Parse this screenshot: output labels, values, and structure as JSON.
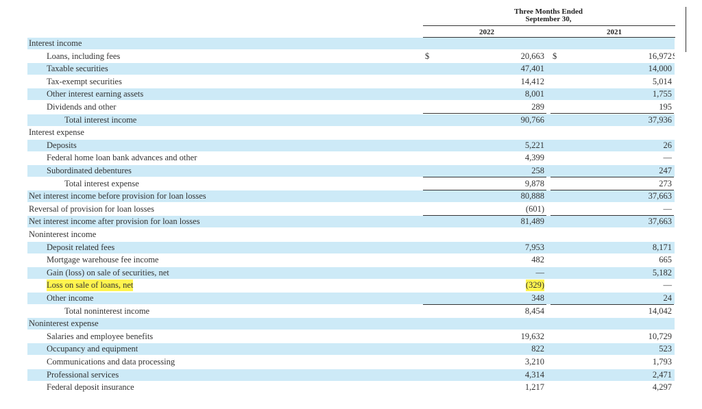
{
  "header": {
    "period": "Three Months Ended",
    "date": "September 30,",
    "col_2022": "2022",
    "col_2021": "2021"
  },
  "currency_symbol": "$",
  "rows": [
    {
      "label": "Interest income",
      "indent": 0,
      "shade": true
    },
    {
      "label": "Loans, including fees",
      "indent": 1,
      "shade": false,
      "v2022": "20,663",
      "v2021": "16,972",
      "cur_left": true,
      "cur_mid": true,
      "cur_right": true
    },
    {
      "label": "Taxable securities",
      "indent": 1,
      "shade": true,
      "v2022": "47,401",
      "v2021": "14,000"
    },
    {
      "label": "Tax-exempt securities",
      "indent": 1,
      "shade": false,
      "v2022": "14,412",
      "v2021": "5,014"
    },
    {
      "label": "Other interest earning assets",
      "indent": 1,
      "shade": true,
      "v2022": "8,001",
      "v2021": "1,755"
    },
    {
      "label": "Dividends and other",
      "indent": 1,
      "shade": false,
      "v2022": "289",
      "v2021": "195",
      "underline": true
    },
    {
      "label": "Total interest income",
      "indent": 2,
      "shade": true,
      "v2022": "90,766",
      "v2021": "37,936"
    },
    {
      "label": "Interest expense",
      "indent": 0,
      "shade": false
    },
    {
      "label": "Deposits",
      "indent": 1,
      "shade": true,
      "v2022": "5,221",
      "v2021": "26"
    },
    {
      "label": "Federal home loan bank advances and other",
      "indent": 1,
      "shade": false,
      "v2022": "4,399",
      "v2021": "—"
    },
    {
      "label": "Subordinated debentures",
      "indent": 1,
      "shade": true,
      "v2022": "258",
      "v2021": "247",
      "underline": true
    },
    {
      "label": "Total interest expense",
      "indent": 2,
      "shade": false,
      "v2022": "9,878",
      "v2021": "273",
      "underline": true
    },
    {
      "label": "Net interest income before provision for loan losses",
      "indent": 0,
      "shade": true,
      "v2022": "80,888",
      "v2021": "37,663"
    },
    {
      "label": "Reversal of provision for loan losses",
      "indent": 0,
      "shade": false,
      "v2022": "(601)",
      "v2021": "—",
      "underline": true
    },
    {
      "label": "Net interest income after provision for loan losses",
      "indent": 0,
      "shade": true,
      "v2022": "81,489",
      "v2021": "37,663"
    },
    {
      "label": "Noninterest income",
      "indent": 0,
      "shade": false
    },
    {
      "label": "Deposit related fees",
      "indent": 1,
      "shade": true,
      "v2022": "7,953",
      "v2021": "8,171"
    },
    {
      "label": "Mortgage warehouse fee income",
      "indent": 1,
      "shade": false,
      "v2022": "482",
      "v2021": "665"
    },
    {
      "label": "Gain (loss) on sale of securities, net",
      "indent": 1,
      "shade": true,
      "v2022": "—",
      "v2021": "5,182"
    },
    {
      "label": "Loss on sale of loans, net",
      "indent": 1,
      "shade": false,
      "v2022": "(329)",
      "v2021": "—",
      "highlight": true
    },
    {
      "label": "Other income",
      "indent": 1,
      "shade": true,
      "v2022": "348",
      "v2021": "24",
      "underline": true
    },
    {
      "label": "Total noninterest income",
      "indent": 2,
      "shade": false,
      "v2022": "8,454",
      "v2021": "14,042"
    },
    {
      "label": "Noninterest expense",
      "indent": 0,
      "shade": true
    },
    {
      "label": "Salaries and employee benefits",
      "indent": 1,
      "shade": false,
      "v2022": "19,632",
      "v2021": "10,729"
    },
    {
      "label": "Occupancy and equipment",
      "indent": 1,
      "shade": true,
      "v2022": "822",
      "v2021": "523"
    },
    {
      "label": "Communications and data processing",
      "indent": 1,
      "shade": false,
      "v2022": "3,210",
      "v2021": "1,793"
    },
    {
      "label": "Professional services",
      "indent": 1,
      "shade": true,
      "v2022": "4,314",
      "v2021": "2,471"
    },
    {
      "label": "Federal deposit insurance",
      "indent": 1,
      "shade": false,
      "v2022": "1,217",
      "v2021": "4,297"
    }
  ],
  "colors": {
    "row_shade": "#cdeaf7",
    "highlight": "#fff44f",
    "text": "#333333"
  }
}
